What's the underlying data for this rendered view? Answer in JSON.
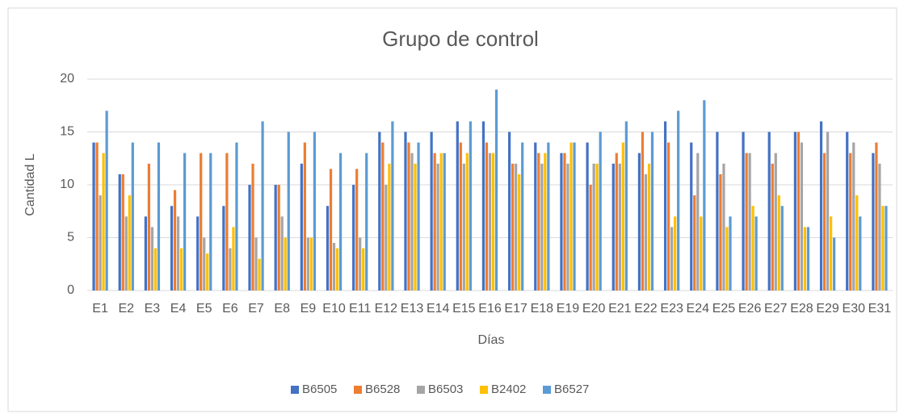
{
  "chart_data": {
    "type": "bar",
    "title": "Grupo de control",
    "x_label": "Días",
    "y_label": "Cantidad L",
    "categories": [
      "E1",
      "E2",
      "E3",
      "E4",
      "E5",
      "E6",
      "E7",
      "E8",
      "E9",
      "E10",
      "E11",
      "E12",
      "E13",
      "E14",
      "E15",
      "E16",
      "E17",
      "E18",
      "E19",
      "E20",
      "E21",
      "E22",
      "E23",
      "E24",
      "E25",
      "E26",
      "E27",
      "E28",
      "E29",
      "E30",
      "E31"
    ],
    "series": [
      {
        "name": "B6505",
        "color": "#4472c4",
        "values": [
          14,
          11,
          7,
          8,
          7,
          8,
          10,
          10,
          12,
          8,
          10,
          15,
          15,
          15,
          16,
          16,
          15,
          14,
          13,
          14,
          12,
          13,
          16,
          14,
          15,
          15,
          15,
          15,
          16,
          15,
          13
        ]
      },
      {
        "name": "B6528",
        "color": "#ed7d31",
        "values": [
          14,
          11,
          12,
          9.5,
          13,
          13,
          12,
          10,
          14,
          11.5,
          11.5,
          14,
          14,
          13,
          14,
          14,
          12,
          13,
          13,
          10,
          13,
          15,
          14,
          9,
          11,
          13,
          12,
          15,
          13,
          13,
          14
        ]
      },
      {
        "name": "B6503",
        "color": "#a5a5a5",
        "values": [
          9,
          7,
          6,
          7,
          5,
          4,
          5,
          7,
          5,
          4.5,
          5,
          10,
          13,
          12,
          12,
          13,
          12,
          12,
          12,
          12,
          12,
          11,
          6,
          13,
          12,
          13,
          13,
          14,
          15,
          14,
          12
        ]
      },
      {
        "name": "B2402",
        "color": "#ffc000",
        "values": [
          13,
          9,
          4,
          4,
          3.5,
          6,
          3,
          5,
          5,
          4,
          4,
          12,
          12,
          13,
          13,
          13,
          11,
          13,
          14,
          12,
          14,
          12,
          7,
          7,
          6,
          8,
          9,
          6,
          7,
          9,
          8
        ]
      },
      {
        "name": "B6527",
        "color": "#5b9bd5",
        "values": [
          17,
          14,
          14,
          13,
          13,
          14,
          16,
          15,
          15,
          13,
          13,
          16,
          14,
          13,
          16,
          19,
          14,
          14,
          14,
          15,
          16,
          15,
          17,
          18,
          7,
          7,
          8,
          6,
          5,
          7,
          8
        ]
      }
    ],
    "ylim": [
      0,
      20
    ],
    "yticks": [
      0,
      5,
      10,
      15,
      20
    ],
    "grid": true,
    "legend": "bottom"
  }
}
